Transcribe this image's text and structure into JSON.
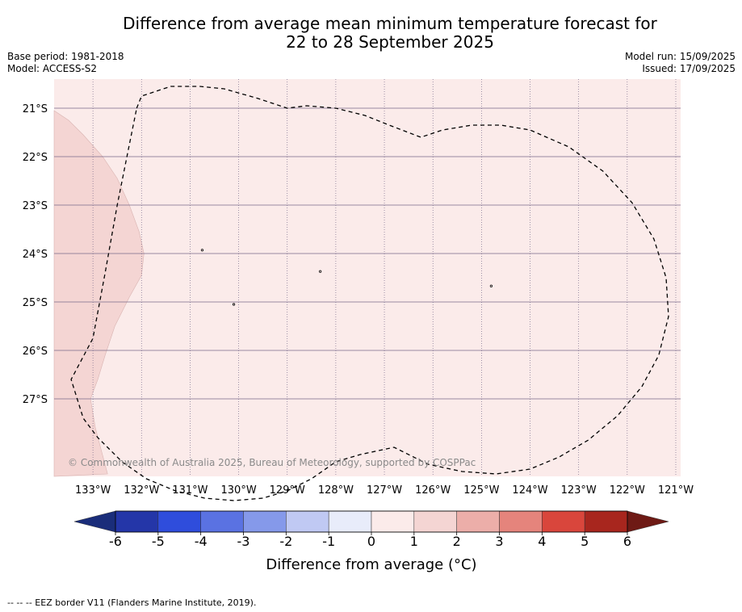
{
  "chart_data": {
    "type": "heatmap",
    "title_line1": "Difference from average mean minimum temperature forecast for",
    "title_line2": "22 to 28 September 2025",
    "base_period": "Base period: 1981-2018",
    "model": "Model: ACCESS-S2",
    "model_run": "Model run: 15/09/2025",
    "issued": "Issued: 17/09/2025",
    "x_ticks": [
      "133°W",
      "132°W",
      "131°W",
      "130°W",
      "129°W",
      "128°W",
      "127°W",
      "126°W",
      "125°W",
      "124°W",
      "123°W",
      "122°W",
      "121°W"
    ],
    "x_tick_values": [
      -133,
      -132,
      -131,
      -130,
      -129,
      -128,
      -127,
      -126,
      -125,
      -124,
      -123,
      -122,
      -121
    ],
    "y_ticks": [
      "21°S",
      "22°S",
      "23°S",
      "24°S",
      "25°S",
      "26°S",
      "27°S"
    ],
    "y_tick_values": [
      -21,
      -22,
      -23,
      -24,
      -25,
      -26,
      -27
    ],
    "xlim": [
      -133.8,
      -120.9
    ],
    "ylim": [
      -28.6,
      -20.4
    ],
    "field_regions": [
      {
        "category": "0 to 1",
        "description": "most of domain"
      },
      {
        "category": "1 to 2",
        "description": "western edge strip near 133°W"
      }
    ],
    "copyright": "© Commonwealth of Australia 2025, Bureau of Meteorology, supported by COSPPac",
    "colorbar": {
      "label": "Difference from average (°C)",
      "ticks": [
        "-6",
        "-5",
        "-4",
        "-3",
        "-2",
        "-1",
        "0",
        "1",
        "2",
        "3",
        "4",
        "5",
        "6"
      ],
      "tick_values": [
        -6,
        -5,
        -4,
        -3,
        -2,
        -1,
        0,
        1,
        2,
        3,
        4,
        5,
        6
      ],
      "extend_low_color": "#1a2d7a",
      "extend_high_color": "#6e1a15",
      "colors": [
        "#2436a8",
        "#2f4ddc",
        "#5a72e2",
        "#8599ea",
        "#c0c9f3",
        "#e8ecfa",
        "#fbebea",
        "#f4d5d3",
        "#ecaea9",
        "#e5847c",
        "#d9463c",
        "#a8261e"
      ]
    },
    "footnote": "--  --  -- EEZ border V11 (Flanders Marine Institute, 2019).",
    "colors": {
      "field_low": "#fbebea",
      "field_mid": "#f4d5d3"
    }
  }
}
